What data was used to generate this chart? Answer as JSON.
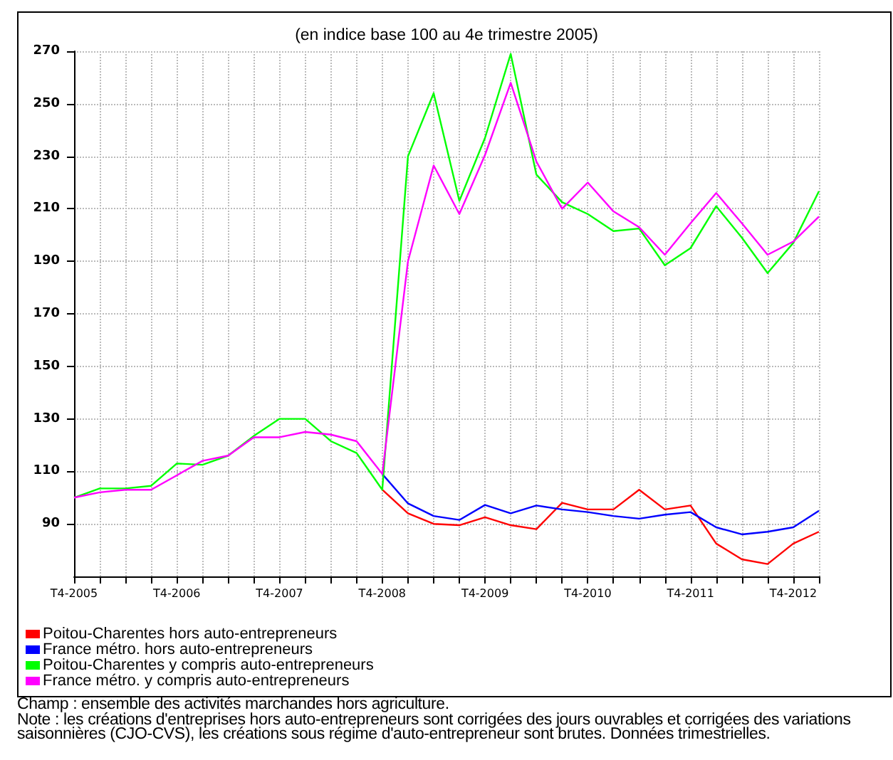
{
  "chart_data": {
    "type": "line",
    "title": "(en indice base 100 au 4e trimestre 2005)",
    "categories": [
      "T4-2005",
      null,
      null,
      null,
      "T4-2006",
      null,
      null,
      null,
      "T4-2007",
      null,
      null,
      null,
      "T4-2008",
      null,
      null,
      null,
      "T4-2009",
      null,
      null,
      null,
      "T4-2010",
      null,
      null,
      null,
      "T4-2011",
      null,
      null,
      null,
      "T4-2012",
      null
    ],
    "series": [
      {
        "name": "Poitou-Charentes hors auto-entrepreneurs",
        "color": "#ff0000",
        "values": [
          null,
          null,
          null,
          null,
          null,
          null,
          null,
          null,
          null,
          null,
          null,
          null,
          103,
          94,
          90,
          89.5,
          92.5,
          89.5,
          88,
          98,
          95.5,
          95.5,
          103,
          95.5,
          97,
          82.5,
          76.5,
          74.7,
          82.5,
          87
        ]
      },
      {
        "name": "France métro. hors auto-entrepreneurs",
        "color": "#0000ff",
        "values": [
          null,
          null,
          null,
          null,
          null,
          null,
          null,
          null,
          null,
          null,
          null,
          null,
          109,
          97.8,
          93,
          91.5,
          97.2,
          94,
          97,
          95.5,
          94.5,
          93,
          92,
          93.5,
          94.5,
          88.7,
          86,
          87,
          88.7,
          95
        ]
      },
      {
        "name": "Poitou-Charentes y compris auto-entrepreneurs",
        "color": "#00ff00",
        "values": [
          100,
          103.5,
          103.5,
          104.5,
          113,
          112.5,
          116,
          123.5,
          130,
          130,
          121.5,
          117,
          103,
          230,
          254,
          213,
          237,
          269,
          223,
          212.5,
          208,
          201.5,
          202.5,
          188.5,
          195,
          211,
          199,
          185.5,
          197,
          216.7
        ]
      },
      {
        "name": "France métro. y compris auto-entrepreneurs",
        "color": "#ff00ff",
        "values": [
          100,
          102,
          103,
          103,
          108.5,
          114,
          116,
          123,
          123,
          125,
          124,
          121.5,
          109,
          190,
          226.5,
          208,
          230.5,
          258,
          228,
          210,
          220,
          209,
          203,
          192.5,
          204.5,
          216,
          204.5,
          192.5,
          197.5,
          207
        ]
      }
    ],
    "ylim": [
      70,
      270
    ],
    "yticks": [
      90,
      110,
      130,
      150,
      170,
      190,
      210,
      230,
      250,
      270
    ],
    "grid": true,
    "legend": "bottom left",
    "marker": "none",
    "line_style": "solid",
    "annotations": [
      "Champ : ensemble des activités marchandes hors agriculture.",
      "Note : les créations d'entreprises hors auto-entrepreneurs sont corrigées des jours ouvrables et corrigées des variations saisonnières (CJO-CVS), les créations sous régime d'auto-entrepreneur sont brutes. Données trimestrielles."
    ]
  }
}
